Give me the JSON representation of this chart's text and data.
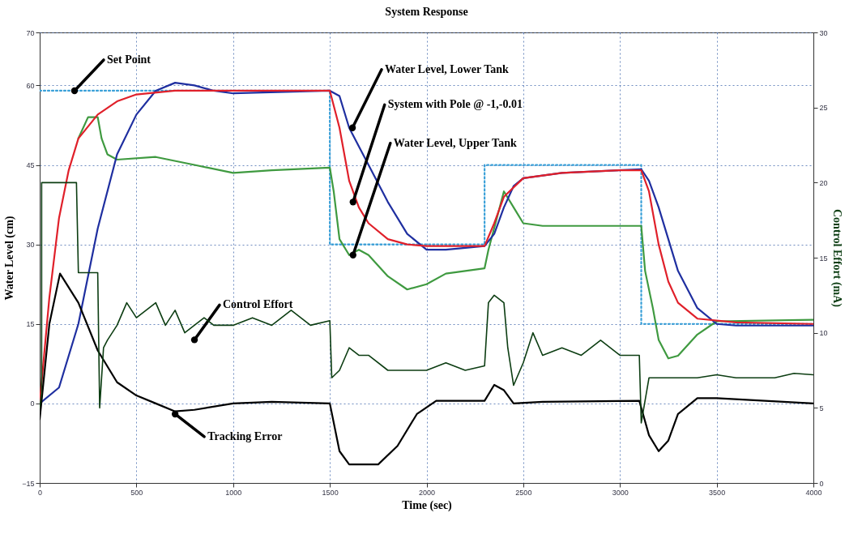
{
  "chart_data": {
    "type": "line",
    "title": "System Response",
    "xlabel": "Time (sec)",
    "ylabel": "Water Level (cm)",
    "y2label": "Control Effort (mA)",
    "xlim": [
      0,
      4000
    ],
    "xticks": [
      0,
      500,
      1000,
      1500,
      2000,
      2500,
      3000,
      3500,
      4000
    ],
    "ylim": [
      -15,
      70
    ],
    "yticks": [
      -15,
      0,
      15,
      30,
      45,
      60,
      70
    ],
    "y2lim": [
      0,
      30
    ],
    "y2ticks": [
      0,
      5,
      10,
      15,
      20,
      25,
      30
    ],
    "grid": true,
    "series": [
      {
        "color": "#3aa0d8",
        "line_style": "dotted",
        "x": [
          0,
          1500,
          1500,
          2300,
          2300,
          3110,
          3110,
          4000
        ],
        "values": [
          59,
          59,
          30,
          30,
          45,
          45,
          15,
          15
        ]
      },
      {
        "color": "#3f9a40",
        "x": [
          200,
          250,
          300,
          320,
          350,
          400,
          600,
          800,
          1000,
          1200,
          1500,
          1520,
          1550,
          1600,
          1650,
          1700,
          1800,
          1900,
          2000,
          2100,
          2300,
          2320,
          2400,
          2450,
          2500,
          2600,
          3000,
          3110,
          3130,
          3170,
          3200,
          3250,
          3300,
          3400,
          3500,
          4000
        ],
        "values": [
          50,
          54,
          54,
          50,
          47,
          46,
          46.5,
          45,
          43.5,
          44,
          44.5,
          40,
          31,
          28,
          29,
          28,
          24,
          21.5,
          22.5,
          24.5,
          25.5,
          29,
          40,
          37,
          34,
          33.5,
          33.5,
          33.5,
          25,
          18,
          12,
          8.5,
          9,
          13,
          15.5,
          15.8
        ]
      },
      {
        "color": "#1f2fa0",
        "x": [
          0,
          100,
          200,
          300,
          400,
          500,
          600,
          700,
          800,
          900,
          1000,
          1500,
          1550,
          1600,
          1700,
          1800,
          1900,
          2000,
          2100,
          2300,
          2350,
          2400,
          2450,
          2500,
          2700,
          3110,
          3150,
          3200,
          3300,
          3400,
          3500,
          3600,
          4000
        ],
        "values": [
          0,
          3,
          15,
          33,
          47,
          54.5,
          59,
          60.5,
          60,
          59,
          58.5,
          59,
          58,
          52,
          45,
          38,
          32,
          29,
          29,
          29.7,
          32,
          37,
          41,
          42.5,
          43.5,
          44.2,
          42,
          37,
          25,
          18,
          15,
          14.7,
          14.7
        ]
      },
      {
        "color": "#e0202a",
        "x": [
          0,
          50,
          100,
          150,
          200,
          300,
          400,
          500,
          700,
          1500,
          1550,
          1600,
          1650,
          1700,
          1800,
          1900,
          2000,
          2300,
          2350,
          2400,
          2500,
          2700,
          3000,
          3110,
          3150,
          3200,
          3250,
          3300,
          3400,
          3600,
          4000
        ],
        "values": [
          0,
          20,
          35,
          44,
          50,
          54.5,
          57,
          58.3,
          59,
          59,
          52,
          42,
          37,
          34,
          31,
          30,
          29.7,
          29.7,
          34,
          39,
          42.5,
          43.5,
          44,
          44,
          40,
          30,
          23,
          19,
          16,
          15.3,
          15
        ]
      },
      {
        "color": "#0c3d12",
        "axis": "y2",
        "x": [
          0,
          10,
          10,
          190,
          200,
          300,
          310,
          330,
          350,
          400,
          450,
          500,
          550,
          600,
          650,
          700,
          750,
          800,
          850,
          900,
          1000,
          1100,
          1200,
          1300,
          1400,
          1500,
          1510,
          1550,
          1600,
          1650,
          1700,
          1800,
          1900,
          2000,
          2100,
          2200,
          2300,
          2320,
          2350,
          2400,
          2420,
          2450,
          2500,
          2550,
          2600,
          2700,
          2800,
          2900,
          3000,
          3100,
          3110,
          3150,
          3200,
          3300,
          3400,
          3500,
          3600,
          3700,
          3800,
          3900,
          4000
        ],
        "values": [
          5,
          6,
          20,
          20,
          14,
          14,
          5,
          9,
          9.5,
          10.5,
          12,
          11,
          11.5,
          12,
          10.5,
          11.5,
          10,
          10.5,
          11,
          10.5,
          10.5,
          11,
          10.5,
          11.5,
          10.5,
          10.8,
          7,
          7.5,
          9,
          8.5,
          8.5,
          7.5,
          7.5,
          7.5,
          8,
          7.5,
          7.8,
          12,
          12.5,
          12,
          9,
          6.5,
          8,
          10,
          8.5,
          9,
          8.5,
          9.5,
          8.5,
          8.5,
          4,
          7,
          7,
          7,
          7,
          7.2,
          7,
          7,
          7,
          7.3,
          7.2
        ]
      },
      {
        "color": "#000000",
        "x": [
          0,
          50,
          105,
          200,
          300,
          400,
          500,
          600,
          700,
          800,
          1000,
          1200,
          1500,
          1550,
          1600,
          1750,
          1850,
          1950,
          2050,
          2300,
          2350,
          2400,
          2450,
          2600,
          3100,
          3150,
          3200,
          3250,
          3300,
          3400,
          3500,
          4000
        ],
        "values": [
          -3,
          15,
          24.5,
          19,
          10,
          4,
          1.5,
          0,
          -1.5,
          -1.2,
          0,
          0.3,
          0,
          -9,
          -11.5,
          -11.5,
          -8,
          -2,
          0.5,
          0.5,
          3.5,
          2.5,
          0,
          0.3,
          0.5,
          -6,
          -9,
          -7,
          -2,
          1,
          1,
          0
        ]
      }
    ],
    "annotations": [
      {
        "text": "Set Point",
        "x": 180,
        "y": 59
      },
      {
        "text": "Water Level, Lower Tank",
        "x": 1617,
        "y": 52
      },
      {
        "text": "System with Pole @ -1,-0.01",
        "x": 1620,
        "y": 38
      },
      {
        "text": "Water Level, Upper Tank",
        "x": 1620,
        "y": 28
      },
      {
        "text": "Control Effort",
        "x": 800,
        "y": 12
      },
      {
        "text": "Tracking Error",
        "x": 700,
        "y": -2
      }
    ]
  }
}
